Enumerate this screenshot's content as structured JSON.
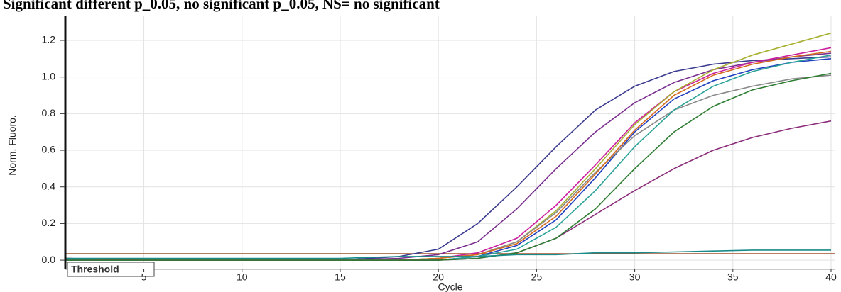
{
  "chart_data": {
    "type": "line",
    "title": "Significant different p_0.05, no significant p_0.05, NS= no significant",
    "x_label": "Cycle",
    "y_label": "Norm. Fluoro.",
    "x": [
      1,
      5,
      10,
      15,
      18,
      20,
      22,
      24,
      26,
      28,
      30,
      32,
      34,
      36,
      38,
      40
    ],
    "xlim": [
      1,
      40
    ],
    "xticks": [
      5,
      10,
      15,
      20,
      25,
      30,
      35,
      40
    ],
    "ylim": [
      -0.05,
      1.32
    ],
    "yticks": [
      {
        "value": 0,
        "label": "0.0"
      },
      0.2,
      0.4,
      0.6,
      0.8,
      {
        "value": 1,
        "label": "1.0"
      },
      1.2
    ],
    "grid": true,
    "threshold": {
      "label": "Threshold",
      "value": 0.035,
      "color": "#a0522d"
    },
    "series": [
      {
        "color": "#3b3b8f",
        "values": [
          0.01,
          0,
          0,
          0,
          0.02,
          0.06,
          0.2,
          0.4,
          0.62,
          0.82,
          0.95,
          1.03,
          1.07,
          1.09,
          1.1,
          1.11
        ]
      },
      {
        "color": "#7a2f8f",
        "values": [
          0.01,
          0,
          0,
          0,
          0.01,
          0.03,
          0.1,
          0.28,
          0.5,
          0.7,
          0.86,
          0.97,
          1.04,
          1.08,
          1.11,
          1.13
        ]
      },
      {
        "color": "#cc1f9e",
        "values": [
          0,
          0,
          0,
          0,
          0,
          0.01,
          0.04,
          0.12,
          0.3,
          0.52,
          0.75,
          0.92,
          1.02,
          1.08,
          1.12,
          1.16
        ]
      },
      {
        "color": "#a8b030",
        "values": [
          0,
          0,
          0,
          0,
          0,
          0.01,
          0.03,
          0.1,
          0.27,
          0.5,
          0.74,
          0.92,
          1.04,
          1.12,
          1.18,
          1.24
        ]
      },
      {
        "color": "#1f3fbf",
        "values": [
          0,
          0,
          0,
          0,
          0,
          0,
          0.02,
          0.08,
          0.22,
          0.45,
          0.7,
          0.88,
          0.98,
          1.04,
          1.08,
          1.1
        ]
      },
      {
        "color": "#8a8a8a",
        "values": [
          0,
          0,
          0,
          0,
          0,
          0.01,
          0.03,
          0.1,
          0.26,
          0.48,
          0.68,
          0.82,
          0.9,
          0.95,
          0.99,
          1.01
        ]
      },
      {
        "color": "#2aa198",
        "values": [
          0,
          0,
          0,
          0,
          0,
          0,
          0.02,
          0.06,
          0.18,
          0.38,
          0.62,
          0.82,
          0.95,
          1.03,
          1.08,
          1.12
        ]
      },
      {
        "color": "#d4691e",
        "values": [
          0.01,
          0,
          0,
          0,
          0,
          0.01,
          0.03,
          0.09,
          0.24,
          0.47,
          0.71,
          0.9,
          1.01,
          1.07,
          1.11,
          1.14
        ]
      },
      {
        "color": "#8b2d7a",
        "values": [
          0,
          0,
          0,
          0,
          0,
          0,
          0.01,
          0.04,
          0.12,
          0.25,
          0.38,
          0.5,
          0.6,
          0.67,
          0.72,
          0.76
        ]
      },
      {
        "color": "#2e7d32",
        "values": [
          0,
          0,
          0,
          0,
          0,
          0,
          0.01,
          0.04,
          0.12,
          0.28,
          0.5,
          0.7,
          0.84,
          0.93,
          0.98,
          1.02
        ]
      },
      {
        "color": "#1b8a8a",
        "values": [
          0.01,
          0.01,
          0.01,
          0.01,
          0.02,
          0.02,
          0.02,
          0.03,
          0.03,
          0.04,
          0.04,
          0.045,
          0.05,
          0.055,
          0.055,
          0.055
        ]
      }
    ]
  }
}
